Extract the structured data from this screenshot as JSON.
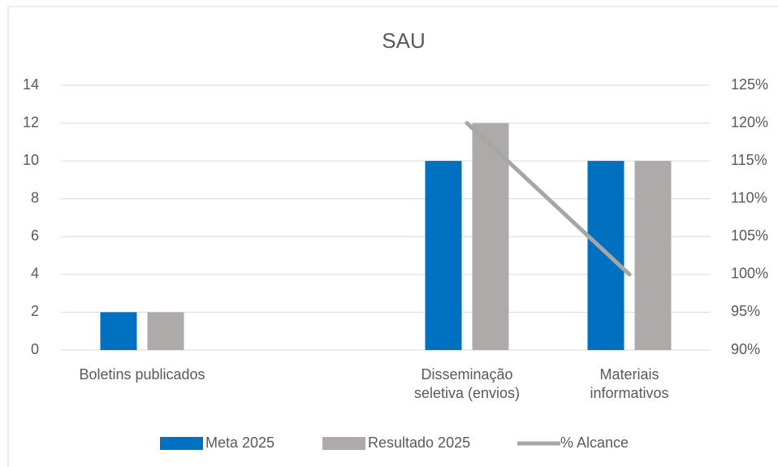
{
  "chart_data": {
    "type": "bar_line",
    "title": "SAU",
    "categories": [
      "Boletins publicados",
      null,
      "Disseminação seletiva (envios)",
      "Materiais informativos"
    ],
    "series": [
      {
        "name": "Meta 2025",
        "color": "#0070c0",
        "values": [
          2,
          null,
          10,
          10
        ]
      },
      {
        "name": "Resultado 2025",
        "color": "#aeaaaa",
        "values": [
          2,
          null,
          12,
          10
        ]
      },
      {
        "name": "% Alcance",
        "color": "#a6a6a6",
        "type": "line",
        "axis": "y2",
        "values": [
          null,
          null,
          120,
          100
        ]
      }
    ],
    "ylim": [
      0,
      14
    ],
    "yticks": [
      0,
      2,
      4,
      6,
      8,
      10,
      12,
      14
    ],
    "y2lim": [
      90,
      125
    ],
    "y2ticks": [
      {
        "value": 90,
        "label": "90%"
      },
      {
        "value": 95,
        "label": "95%"
      },
      {
        "value": 100,
        "label": "100%"
      },
      {
        "value": 105,
        "label": "105%"
      },
      {
        "value": 110,
        "label": "110%"
      },
      {
        "value": 115,
        "label": "115%"
      },
      {
        "value": 120,
        "label": "120%"
      },
      {
        "value": 125,
        "label": "125%"
      }
    ],
    "grid": true,
    "legend": "bottom"
  }
}
